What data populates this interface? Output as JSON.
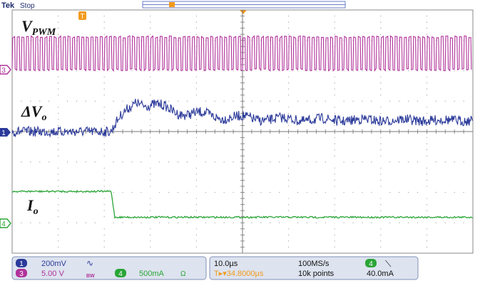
{
  "header": {
    "brand": "Tek",
    "status": "Stop"
  },
  "colors": {
    "ch1": "#2b3a9a",
    "ch3": "#b0329a",
    "ch4": "#2aa537",
    "trigger": "#f29a1c",
    "panel": "#dde3ef",
    "grid": "#9a9a9a"
  },
  "labels": {
    "vpwm": "V",
    "vpwm_sub": "PWM",
    "dvo": "ΔV",
    "dvo_sub": "o",
    "io": "I",
    "io_sub": "o"
  },
  "markers": {
    "ch3": "3",
    "ch1": "1",
    "ch4": "4",
    "trigger": "T"
  },
  "status_bar": {
    "ch1_num": "1",
    "ch1_scale": "200mV",
    "ch1_coupling": "∿",
    "ch3_num": "3",
    "ch3_scale": "5.00 V",
    "ch3_bw": "BW",
    "ch4_num": "4",
    "ch4_scale": "500mA",
    "ch4_coupling": "Ω",
    "timebase": "10.0µs",
    "sample_rate": "100MS/s",
    "trig_pos": "T▸▾34.8000µs",
    "record_length": "10k points",
    "trig_src": "4",
    "trig_slope": "⟍",
    "trig_level": "40.0mA"
  },
  "chart_data": {
    "type": "line",
    "grid": {
      "divisions_x": 10,
      "divisions_y": 8,
      "on": true
    },
    "timebase_per_div_us": 10.0,
    "trigger_position_us": 34.8,
    "series": [
      {
        "channel": "3",
        "label": "V_PWM",
        "scale_per_div": "5.00 V",
        "kind": "pwm",
        "cycles_visible": 100,
        "amplitude_div": 1.0
      },
      {
        "channel": "1",
        "label": "ΔV_o",
        "scale_per_div": "200mV",
        "kind": "transient",
        "step_time_div": 2.15,
        "peak_div": 1.05,
        "peak_time_div": 2.7,
        "ripple_div": 0.3,
        "settling": "decaying"
      },
      {
        "channel": "4",
        "label": "I_o",
        "scale_per_div": "500mA",
        "kind": "step",
        "step_time_div": 2.15,
        "before_level_div": 1.05,
        "after_level_div": 0.2
      }
    ]
  }
}
